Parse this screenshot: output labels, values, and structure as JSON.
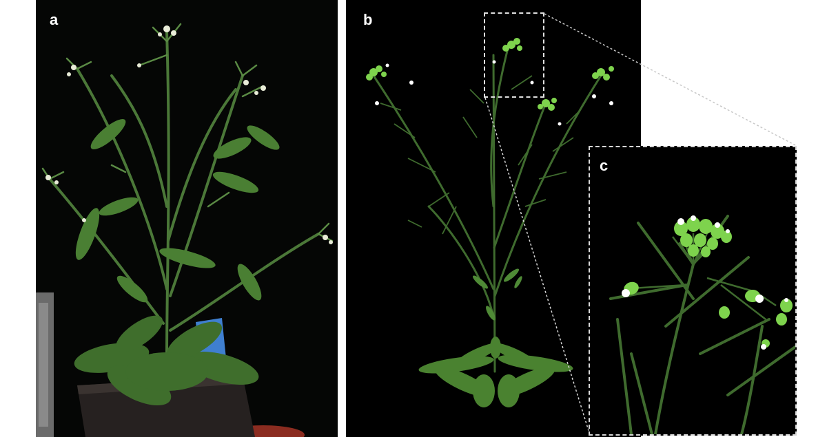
{
  "panels": {
    "a": {
      "label": "a"
    },
    "b": {
      "label": "b"
    },
    "c": {
      "label": "c"
    }
  },
  "colors": {
    "background": "#000000",
    "stem": "#3f6b2e",
    "leaf": "#4f8a36",
    "leaf_dark": "#2f5a22",
    "bud": "#7ed34d",
    "petal": "#ffffff",
    "pot": "#2a2522",
    "label_blue": "#3f7fd0",
    "dashed_line": "#d8d8d8"
  }
}
